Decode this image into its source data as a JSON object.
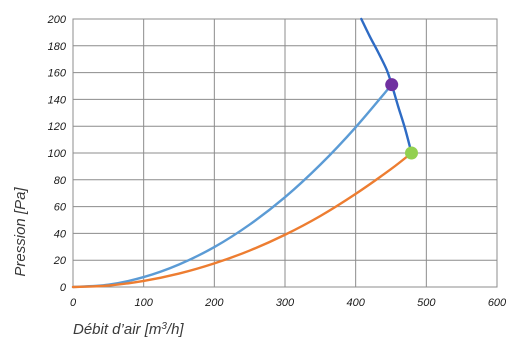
{
  "chart_data": {
    "type": "line",
    "xlabel": "Débit d’air [m3/h]",
    "ylabel": "Pression [Pa]",
    "xlim": [
      0,
      600
    ],
    "ylim": [
      0,
      200
    ],
    "x_ticks": [
      "0",
      "100",
      "200",
      "300",
      "400",
      "500",
      "600"
    ],
    "y_ticks": [
      "0",
      "20",
      "40",
      "60",
      "80",
      "100",
      "120",
      "140",
      "160",
      "180",
      "200"
    ],
    "grid": true,
    "legend": "none",
    "series": [
      {
        "color": "#2e6bc4",
        "points": [
          [
            408,
            200
          ],
          [
            420,
            187
          ],
          [
            432,
            175
          ],
          [
            444,
            162
          ],
          [
            451,
            151
          ],
          [
            460,
            135
          ],
          [
            470,
            118
          ],
          [
            479,
            100
          ]
        ]
      },
      {
        "color": "#5b9bd5",
        "points": [
          [
            0,
            0
          ],
          [
            50,
            1.7
          ],
          [
            100,
            7.4
          ],
          [
            150,
            16.8
          ],
          [
            200,
            29.8
          ],
          [
            250,
            46.6
          ],
          [
            300,
            67
          ],
          [
            350,
            91.3
          ],
          [
            400,
            119.2
          ],
          [
            451,
            151
          ]
        ]
      },
      {
        "color": "#ed7d31",
        "points": [
          [
            0,
            0
          ],
          [
            50,
            1.1
          ],
          [
            100,
            4.5
          ],
          [
            150,
            10
          ],
          [
            200,
            17.6
          ],
          [
            250,
            27.2
          ],
          [
            300,
            39
          ],
          [
            350,
            53
          ],
          [
            400,
            69.5
          ],
          [
            450,
            88
          ],
          [
            479,
            100
          ]
        ]
      }
    ],
    "markers": [
      {
        "x": 451,
        "y": 151,
        "color": "#7030a0"
      },
      {
        "x": 479,
        "y": 100,
        "color": "#92d050"
      }
    ]
  }
}
